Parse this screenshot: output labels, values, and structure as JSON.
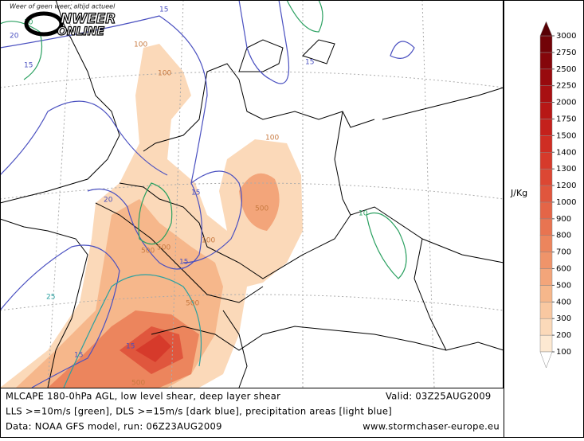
{
  "header": {
    "tagline": "Weer of geen weer, altijd actueel",
    "logo_top": "NWEER",
    "logo_bottom": "ONLINE"
  },
  "map": {
    "labels": [
      "20",
      "15",
      "100",
      "15",
      "100",
      "100",
      "20",
      "15",
      "500",
      "500",
      "500",
      "100",
      "15",
      "25",
      "500",
      "15",
      "15",
      "500",
      "10",
      "10",
      "15"
    ]
  },
  "colorbar": {
    "unit": "J/Kg",
    "levels": [
      100,
      200,
      300,
      400,
      500,
      600,
      700,
      800,
      900,
      1000,
      1200,
      1300,
      1400,
      1500,
      1750,
      2000,
      2250,
      2500,
      2750,
      3000
    ],
    "colors": [
      "#fde9d2",
      "#fbd9b9",
      "#f9c8a1",
      "#f6b78b",
      "#f3a57a",
      "#ef946a",
      "#ec855d",
      "#e87451",
      "#e46547",
      "#e0563d",
      "#dc4733",
      "#d63a2b",
      "#cf2d23",
      "#c4211c",
      "#b71716",
      "#a81012",
      "#980a0e",
      "#85060b",
      "#720308"
    ],
    "top_color": "#580005"
  },
  "footer": {
    "title": "MLCAPE 180-0hPa AGL, low level shear, deep layer shear",
    "valid": "Valid: 03Z25AUG2009",
    "legend": "LLS >=10m/s [green], DLS >=15m/s [dark blue], precipitation areas [light blue]",
    "data": "Data: NOAA GFS model, run: 06Z23AUG2009",
    "site": "www.stormchaser-europe.eu"
  }
}
